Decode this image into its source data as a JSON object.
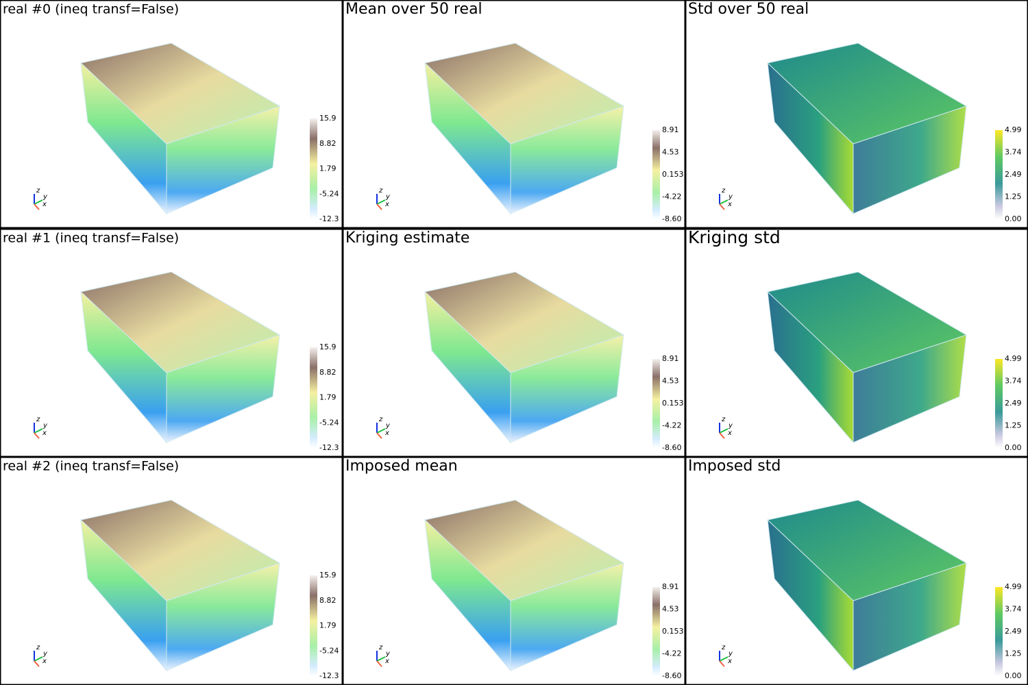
{
  "panels": [
    {
      "title": "real #0 (ineq transf=False)",
      "colorbar_ticks": [
        "15.9",
        "8.82",
        "1.79",
        "-5.24",
        "-12.3"
      ],
      "axes": [
        "z",
        "y",
        "x"
      ]
    },
    {
      "title": "Mean over 50 real",
      "colorbar_ticks": [
        "8.91",
        "4.53",
        "0.153",
        "-4.22",
        "-8.60"
      ],
      "axes": [
        "z",
        "y",
        "x"
      ]
    },
    {
      "title": "Std over 50 real",
      "colorbar_ticks": [
        "4.99",
        "3.74",
        "2.49",
        "1.25",
        "0.00"
      ],
      "axes": [
        "z",
        "y",
        "x"
      ]
    },
    {
      "title": "real #1 (ineq transf=False)",
      "colorbar_ticks": [
        "15.9",
        "8.82",
        "1.79",
        "-5.24",
        "-12.3"
      ],
      "axes": [
        "z",
        "y",
        "x"
      ]
    },
    {
      "title": "Kriging estimate",
      "colorbar_ticks": [
        "8.91",
        "4.53",
        "0.153",
        "-4.22",
        "-8.60"
      ],
      "axes": [
        "z",
        "y",
        "x"
      ]
    },
    {
      "title": "Kriging std",
      "colorbar_ticks": [
        "4.99",
        "3.74",
        "2.49",
        "1.25",
        "0.00"
      ],
      "axes": [
        "z",
        "y",
        "x"
      ]
    },
    {
      "title": "real #2 (ineq transf=False)",
      "colorbar_ticks": [
        "15.9",
        "8.82",
        "1.79",
        "-5.24",
        "-12.3"
      ],
      "axes": [
        "z",
        "y",
        "x"
      ]
    },
    {
      "title": "Imposed mean",
      "colorbar_ticks": [
        "8.91",
        "4.53",
        "0.153",
        "-4.22",
        "-8.60"
      ],
      "axes": [
        "z",
        "y",
        "x"
      ]
    },
    {
      "title": "Imposed std",
      "colorbar_ticks": [
        "4.99",
        "3.74",
        "2.49",
        "1.25",
        "0.00"
      ],
      "axes": [
        "z",
        "y",
        "x"
      ]
    }
  ]
}
